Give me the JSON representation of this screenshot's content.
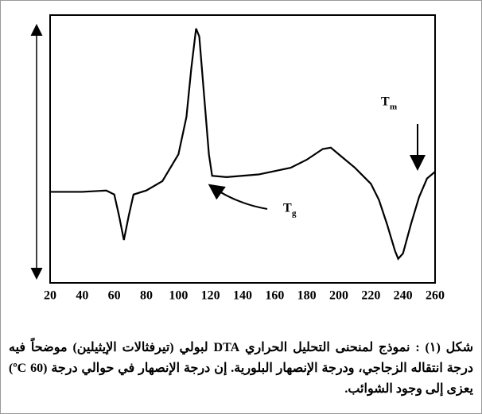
{
  "chart_data": {
    "type": "line",
    "x": [
      20,
      40,
      55,
      60,
      63,
      66,
      69,
      72,
      80,
      90,
      100,
      105,
      108,
      111,
      113,
      116,
      119,
      121,
      130,
      150,
      170,
      180,
      190,
      195,
      200,
      210,
      220,
      225,
      230,
      235,
      237,
      240,
      245,
      250,
      255,
      260
    ],
    "values": [
      34,
      34,
      34.5,
      33,
      25,
      16,
      25,
      33,
      34.5,
      38,
      48,
      62,
      80,
      95,
      92,
      70,
      48,
      40,
      39.5,
      40.5,
      43,
      46,
      50,
      50.5,
      48,
      43,
      37,
      31,
      22,
      12,
      9,
      11,
      22,
      32,
      39,
      41.5
    ],
    "color": "#000000",
    "xlim": [
      20,
      260
    ],
    "xticks": [
      20,
      40,
      60,
      80,
      100,
      120,
      140,
      160,
      180,
      200,
      220,
      240,
      260
    ],
    "ylim": [
      0,
      100
    ],
    "annotations": [
      {
        "text": "T",
        "sub": "g"
      },
      {
        "text": "T",
        "sub": "m"
      }
    ]
  },
  "caption": {
    "label": "شكل (١) :",
    "text": "نموذج لمنحنى التحليل الحراري DTA لبولي (تيرفثالات الإيثيلين) موضحاً فيه درجة انتقاله الزجاجي، ودرجة الإنصهار البلورية. إن درجة الإنصهار في حوالي درجة (60 ºC) يعزى إلى وجود الشوائب."
  }
}
